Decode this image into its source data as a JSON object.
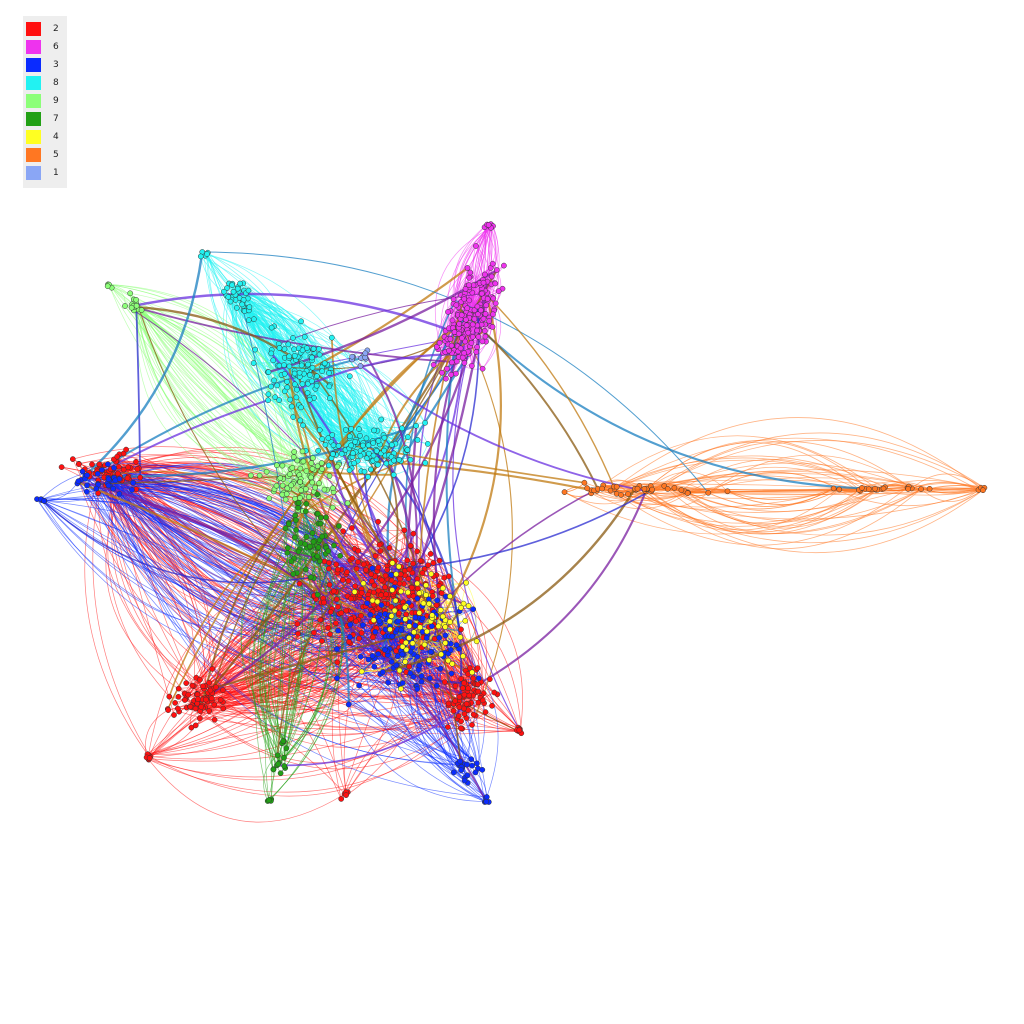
{
  "legend": {
    "items": [
      {
        "label": "2",
        "color": "#ff1010"
      },
      {
        "label": "6",
        "color": "#ee33ee"
      },
      {
        "label": "3",
        "color": "#0a2bff"
      },
      {
        "label": "8",
        "color": "#22f2f2"
      },
      {
        "label": "9",
        "color": "#8cff78"
      },
      {
        "label": "7",
        "color": "#22a015"
      },
      {
        "label": "4",
        "color": "#ffff22"
      },
      {
        "label": "5",
        "color": "#ff7722"
      },
      {
        "label": "1",
        "color": "#8aa6f5"
      }
    ]
  },
  "network": {
    "communities": [
      {
        "name": "community-2",
        "color": "#ff1010"
      },
      {
        "name": "community-6",
        "color": "#ee33ee"
      },
      {
        "name": "community-3",
        "color": "#0a2bff"
      },
      {
        "name": "community-8",
        "color": "#22f2f2"
      },
      {
        "name": "community-9",
        "color": "#8cff78"
      },
      {
        "name": "community-7",
        "color": "#22a015"
      },
      {
        "name": "community-4",
        "color": "#ffff22"
      },
      {
        "name": "community-5",
        "color": "#ff7722"
      },
      {
        "name": "community-1",
        "color": "#8aa6f5"
      }
    ],
    "bridge_edge_colors": [
      "#7a1fa0",
      "#2a2bd0",
      "#8a5a10",
      "#1a7fc0",
      "#6a30e0",
      "#c07a10"
    ]
  }
}
